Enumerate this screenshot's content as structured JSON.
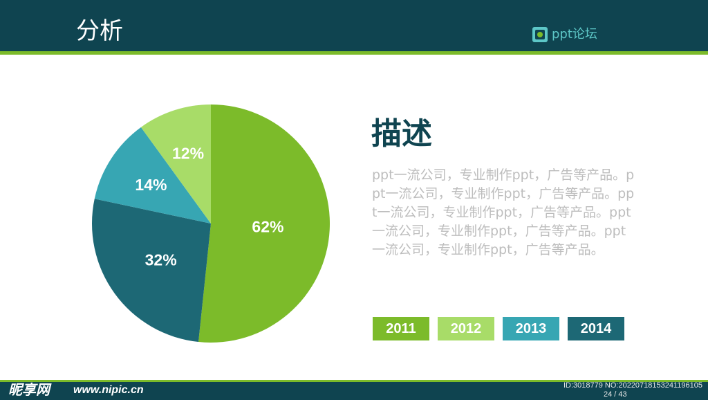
{
  "header": {
    "title": "分析",
    "logo_text": "ppt论坛"
  },
  "chart_data": {
    "type": "pie",
    "slices": [
      {
        "label": "62%",
        "value": 62,
        "color": "#7cbb2a"
      },
      {
        "label": "32%",
        "value": 32,
        "color": "#1d6875"
      },
      {
        "label": "14%",
        "value": 14,
        "color": "#37a6b3"
      },
      {
        "label": "12%",
        "value": 12,
        "color": "#a8dc68"
      }
    ],
    "legend": {
      "placement": "bottom-right",
      "entries": [
        {
          "name": "2011",
          "color": "#7cbb2a"
        },
        {
          "name": "2012",
          "color": "#a8dc68"
        },
        {
          "name": "2013",
          "color": "#37a6b3"
        },
        {
          "name": "2014",
          "color": "#1d6875"
        }
      ]
    }
  },
  "description": {
    "title": "描述",
    "body": "ppt一流公司，专业制作ppt，广告等产品。ppt一流公司，专业制作ppt，广告等产品。ppt一流公司，专业制作ppt，广告等产品。ppt一流公司，专业制作ppt，广告等产品。ppt一流公司，专业制作ppt，广告等产品。"
  },
  "watermark": {
    "site_name": "昵享网",
    "url": "www.nipic.cn",
    "id_text": "ID:3018779 NO:20220718153241196105"
  },
  "page_number": "24 / 43",
  "colors": {
    "header_bg": "#0f4450",
    "accent": "#7cbb2a"
  }
}
